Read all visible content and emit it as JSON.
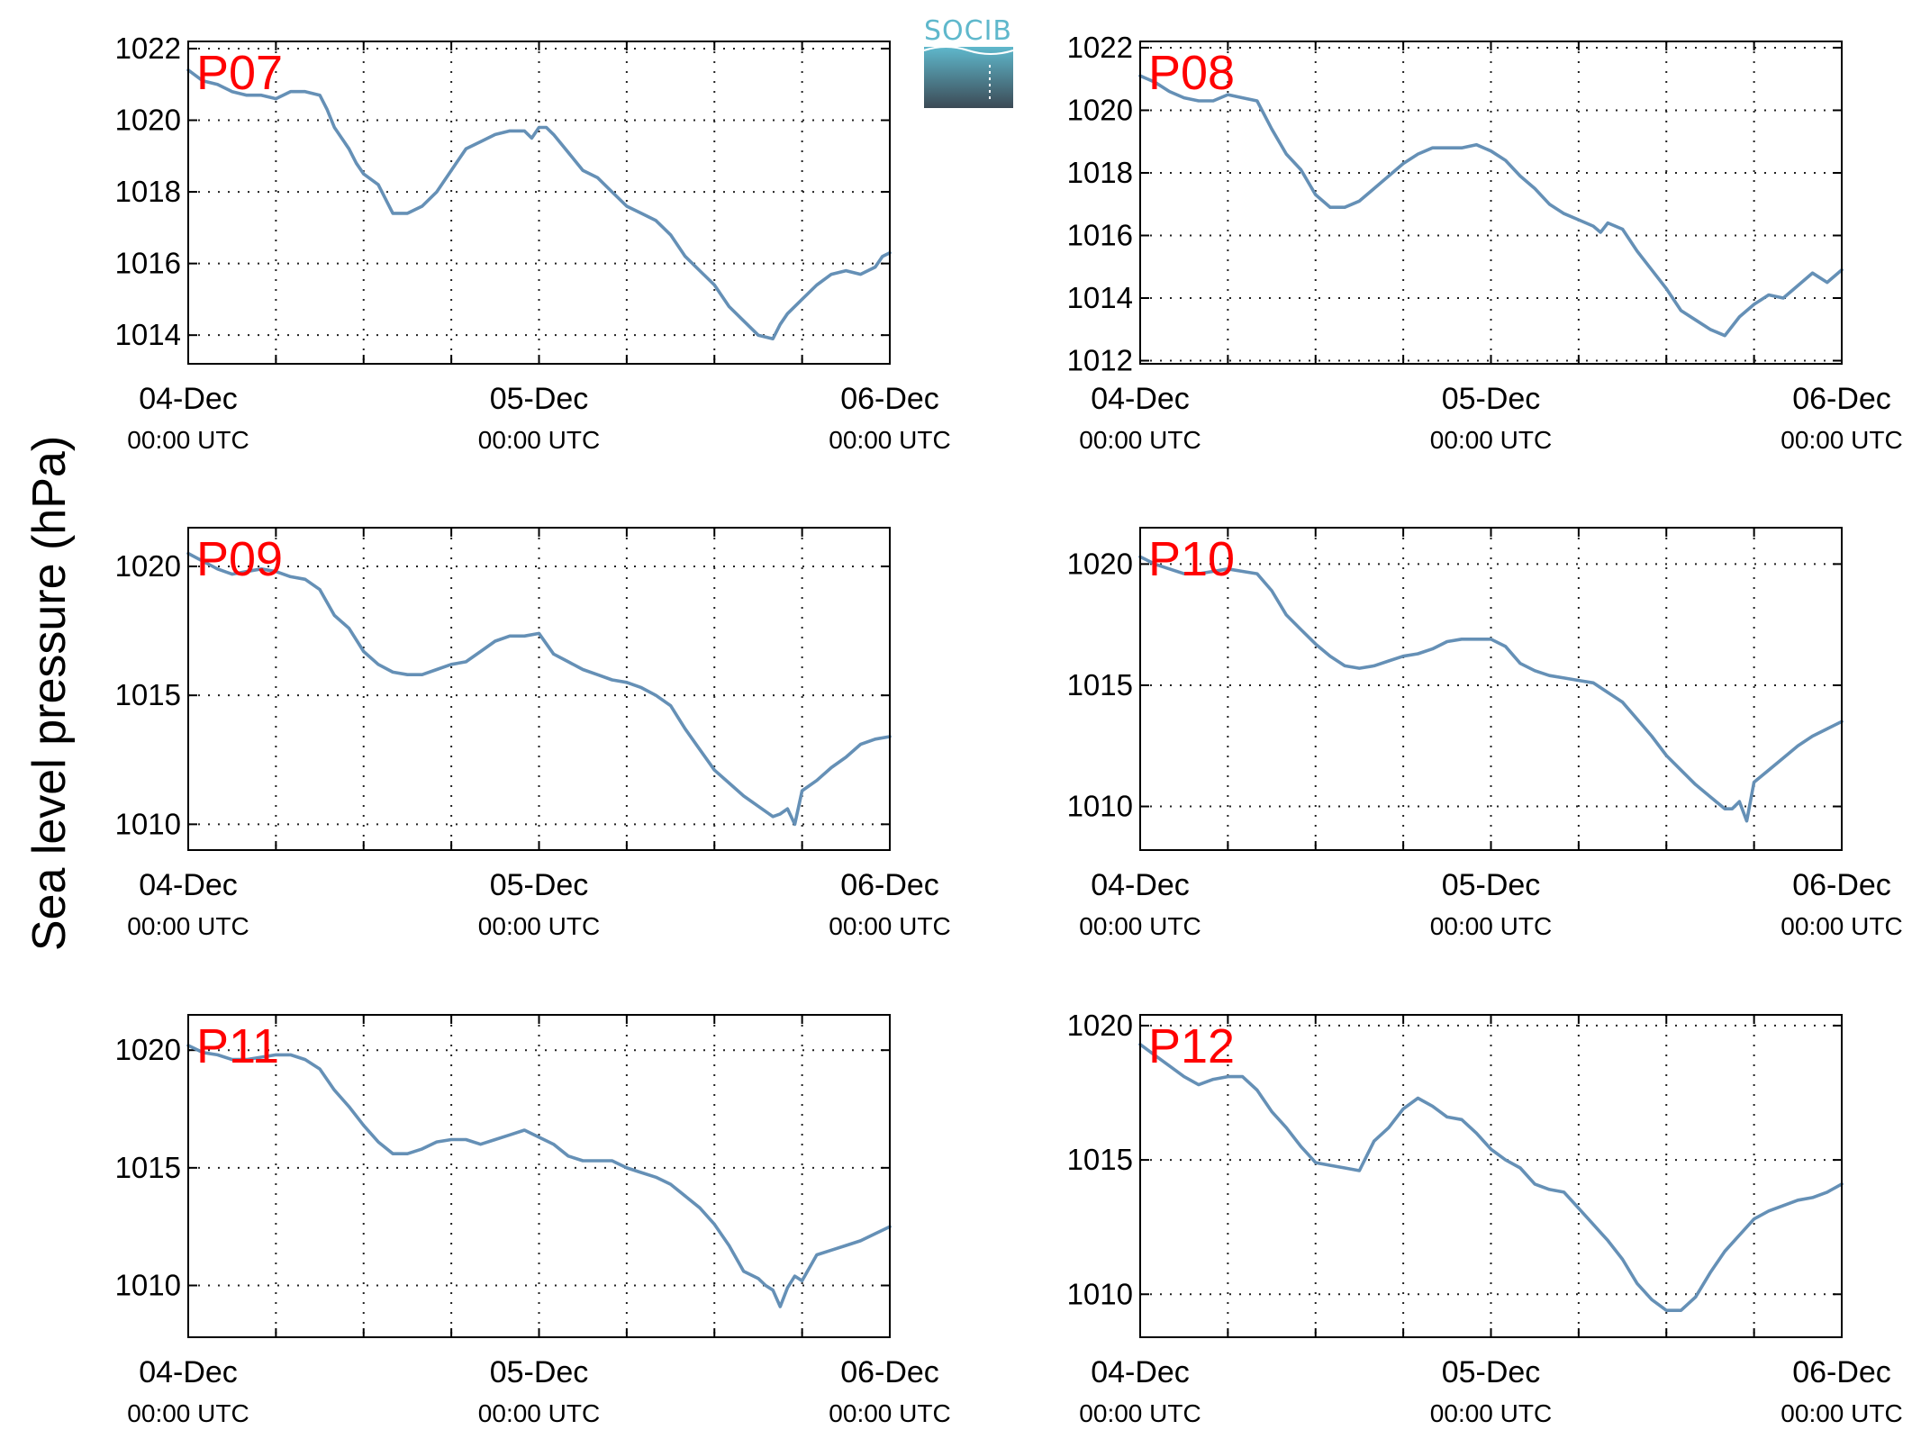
{
  "figure": {
    "ylabel": "Sea level pressure (hPa)",
    "logo_text": "SOCIB",
    "colors": {
      "line": "#6590b6",
      "label": "#ff0000",
      "logo_top": "#5fb8cc",
      "logo_bottom": "#3c4a55"
    },
    "x_tick_dates": [
      "04-Dec",
      "05-Dec",
      "06-Dec"
    ],
    "x_tick_time": "00:00 UTC"
  },
  "chart_data": [
    {
      "type": "line",
      "label": "P07",
      "x_unit": "hours since 04-Dec 00:00 UTC",
      "xlim": [
        0,
        48
      ],
      "ylim": [
        1013.2,
        1022.2
      ],
      "yticks": [
        1014,
        1016,
        1018,
        1020,
        1022
      ],
      "x": [
        0,
        1,
        2,
        3,
        4,
        5,
        6,
        7,
        8,
        9,
        9.5,
        10,
        11,
        11.5,
        12,
        13,
        14,
        15,
        16,
        17,
        18,
        19,
        20,
        21,
        22,
        23,
        23.5,
        24,
        24.5,
        25,
        26,
        27,
        28,
        29,
        30,
        31,
        32,
        33,
        34,
        35,
        36,
        37,
        38,
        39,
        40,
        40.5,
        41,
        42,
        43,
        44,
        45,
        46,
        47,
        47.5,
        48
      ],
      "y": [
        1021.4,
        1021.1,
        1021.0,
        1020.8,
        1020.7,
        1020.7,
        1020.6,
        1020.8,
        1020.8,
        1020.7,
        1020.3,
        1019.8,
        1019.2,
        1018.8,
        1018.5,
        1018.2,
        1017.4,
        1017.4,
        1017.6,
        1018.0,
        1018.6,
        1019.2,
        1019.4,
        1019.6,
        1019.7,
        1019.7,
        1019.5,
        1019.8,
        1019.8,
        1019.6,
        1019.1,
        1018.6,
        1018.4,
        1018.0,
        1017.6,
        1017.4,
        1017.2,
        1016.8,
        1016.2,
        1015.8,
        1015.4,
        1014.8,
        1014.4,
        1014.0,
        1013.9,
        1014.3,
        1014.6,
        1015.0,
        1015.4,
        1015.7,
        1015.8,
        1015.7,
        1015.9,
        1016.2,
        1016.3
      ]
    },
    {
      "type": "line",
      "label": "P08",
      "x_unit": "hours since 04-Dec 00:00 UTC",
      "xlim": [
        0,
        48
      ],
      "ylim": [
        1011.9,
        1022.2
      ],
      "yticks": [
        1012,
        1014,
        1016,
        1018,
        1020,
        1022
      ],
      "x": [
        0,
        1,
        2,
        3,
        4,
        5,
        6,
        7,
        8,
        9,
        10,
        11,
        12,
        13,
        14,
        15,
        16,
        17,
        18,
        19,
        20,
        21,
        22,
        23,
        24,
        25,
        26,
        27,
        28,
        29,
        30,
        31,
        31.5,
        32,
        33,
        34,
        35,
        36,
        37,
        38,
        39,
        40,
        41,
        42,
        43,
        44,
        45,
        46,
        47,
        48
      ],
      "y": [
        1021.1,
        1020.9,
        1020.6,
        1020.4,
        1020.3,
        1020.3,
        1020.5,
        1020.4,
        1020.3,
        1019.4,
        1018.6,
        1018.1,
        1017.3,
        1016.9,
        1016.9,
        1017.1,
        1017.5,
        1017.9,
        1018.3,
        1018.6,
        1018.8,
        1018.8,
        1018.8,
        1018.9,
        1018.7,
        1018.4,
        1017.9,
        1017.5,
        1017.0,
        1016.7,
        1016.5,
        1016.3,
        1016.1,
        1016.4,
        1016.2,
        1015.5,
        1014.9,
        1014.3,
        1013.6,
        1013.3,
        1013.0,
        1012.8,
        1013.4,
        1013.8,
        1014.1,
        1014.0,
        1014.4,
        1014.8,
        1014.5,
        1014.9
      ]
    },
    {
      "type": "line",
      "label": "P09",
      "x_unit": "hours since 04-Dec 00:00 UTC",
      "xlim": [
        0,
        48
      ],
      "ylim": [
        1009.0,
        1021.5
      ],
      "yticks": [
        1010,
        1015,
        1020
      ],
      "x": [
        0,
        1,
        2,
        3,
        4,
        5,
        6,
        7,
        8,
        9,
        10,
        11,
        12,
        13,
        14,
        15,
        16,
        17,
        18,
        19,
        20,
        21,
        22,
        23,
        24,
        25,
        26,
        27,
        28,
        29,
        30,
        31,
        32,
        33,
        34,
        35,
        36,
        37,
        38,
        39,
        40,
        40.5,
        41,
        41.5,
        42,
        43,
        44,
        45,
        46,
        47,
        48
      ],
      "y": [
        1020.5,
        1020.2,
        1019.9,
        1019.7,
        1019.8,
        1019.9,
        1019.8,
        1019.6,
        1019.5,
        1019.1,
        1018.1,
        1017.6,
        1016.7,
        1016.2,
        1015.9,
        1015.8,
        1015.8,
        1016.0,
        1016.2,
        1016.3,
        1016.7,
        1017.1,
        1017.3,
        1017.3,
        1017.4,
        1016.6,
        1016.3,
        1016.0,
        1015.8,
        1015.6,
        1015.5,
        1015.3,
        1015.0,
        1014.6,
        1013.7,
        1012.9,
        1012.1,
        1011.6,
        1011.1,
        1010.7,
        1010.3,
        1010.4,
        1010.6,
        1010.0,
        1011.3,
        1011.7,
        1012.2,
        1012.6,
        1013.1,
        1013.3,
        1013.4
      ]
    },
    {
      "type": "line",
      "label": "P10",
      "x_unit": "hours since 04-Dec 00:00 UTC",
      "xlim": [
        0,
        48
      ],
      "ylim": [
        1008.2,
        1021.5
      ],
      "yticks": [
        1010,
        1015,
        1020
      ],
      "x": [
        0,
        1,
        2,
        3,
        4,
        5,
        6,
        7,
        8,
        9,
        10,
        11,
        12,
        13,
        14,
        15,
        16,
        17,
        18,
        19,
        20,
        21,
        22,
        23,
        24,
        25,
        26,
        27,
        28,
        29,
        30,
        31,
        32,
        33,
        34,
        35,
        36,
        37,
        38,
        39,
        40,
        40.5,
        41,
        41.5,
        42,
        43,
        44,
        45,
        46,
        47,
        48
      ],
      "y": [
        1020.3,
        1020.0,
        1019.8,
        1019.6,
        1019.6,
        1019.7,
        1019.8,
        1019.7,
        1019.6,
        1018.9,
        1017.9,
        1017.3,
        1016.7,
        1016.2,
        1015.8,
        1015.7,
        1015.8,
        1016.0,
        1016.2,
        1016.3,
        1016.5,
        1016.8,
        1016.9,
        1016.9,
        1016.9,
        1016.6,
        1015.9,
        1015.6,
        1015.4,
        1015.3,
        1015.2,
        1015.1,
        1014.7,
        1014.3,
        1013.6,
        1012.9,
        1012.1,
        1011.5,
        1010.9,
        1010.4,
        1009.9,
        1009.9,
        1010.2,
        1009.4,
        1011.0,
        1011.5,
        1012.0,
        1012.5,
        1012.9,
        1013.2,
        1013.5
      ]
    },
    {
      "type": "line",
      "label": "P11",
      "x_unit": "hours since 04-Dec 00:00 UTC",
      "xlim": [
        0,
        48
      ],
      "ylim": [
        1007.8,
        1021.5
      ],
      "yticks": [
        1010,
        1015,
        1020
      ],
      "x": [
        0,
        1,
        2,
        3,
        4,
        5,
        6,
        7,
        8,
        9,
        10,
        11,
        12,
        13,
        14,
        15,
        16,
        17,
        18,
        19,
        20,
        21,
        22,
        23,
        24,
        25,
        26,
        27,
        28,
        29,
        30,
        31,
        32,
        33,
        34,
        35,
        36,
        37,
        38,
        39,
        39.5,
        40,
        40.5,
        41,
        41.5,
        42,
        43,
        44,
        45,
        46,
        47,
        48
      ],
      "y": [
        1020.2,
        1019.9,
        1019.8,
        1019.6,
        1019.6,
        1019.7,
        1019.8,
        1019.8,
        1019.6,
        1019.2,
        1018.3,
        1017.6,
        1016.8,
        1016.1,
        1015.6,
        1015.6,
        1015.8,
        1016.1,
        1016.2,
        1016.2,
        1016.0,
        1016.2,
        1016.4,
        1016.6,
        1016.3,
        1016.0,
        1015.5,
        1015.3,
        1015.3,
        1015.3,
        1015.0,
        1014.8,
        1014.6,
        1014.3,
        1013.8,
        1013.3,
        1012.6,
        1011.7,
        1010.6,
        1010.3,
        1010.0,
        1009.8,
        1009.1,
        1009.9,
        1010.4,
        1010.2,
        1011.3,
        1011.5,
        1011.7,
        1011.9,
        1012.2,
        1012.5
      ]
    },
    {
      "type": "line",
      "label": "P12",
      "x_unit": "hours since 04-Dec 00:00 UTC",
      "xlim": [
        0,
        48
      ],
      "ylim": [
        1008.4,
        1020.4
      ],
      "yticks": [
        1010,
        1015,
        1020
      ],
      "x": [
        0,
        1,
        2,
        3,
        4,
        5,
        6,
        7,
        8,
        9,
        10,
        11,
        12,
        13,
        14,
        15,
        16,
        17,
        18,
        19,
        20,
        21,
        22,
        23,
        24,
        25,
        26,
        27,
        28,
        29,
        30,
        31,
        32,
        33,
        34,
        35,
        36,
        37,
        38,
        39,
        40,
        41,
        42,
        43,
        44,
        45,
        46,
        47,
        48
      ],
      "y": [
        1019.3,
        1018.9,
        1018.5,
        1018.1,
        1017.8,
        1018.0,
        1018.1,
        1018.1,
        1017.6,
        1016.8,
        1016.2,
        1015.5,
        1014.9,
        1014.8,
        1014.7,
        1014.6,
        1015.7,
        1016.2,
        1016.9,
        1017.3,
        1017.0,
        1016.6,
        1016.5,
        1016.0,
        1015.4,
        1015.0,
        1014.7,
        1014.1,
        1013.9,
        1013.8,
        1013.2,
        1012.6,
        1012.0,
        1011.3,
        1010.4,
        1009.8,
        1009.4,
        1009.4,
        1009.9,
        1010.8,
        1011.6,
        1012.2,
        1012.8,
        1013.1,
        1013.3,
        1013.5,
        1013.6,
        1013.8,
        1014.1
      ]
    }
  ]
}
